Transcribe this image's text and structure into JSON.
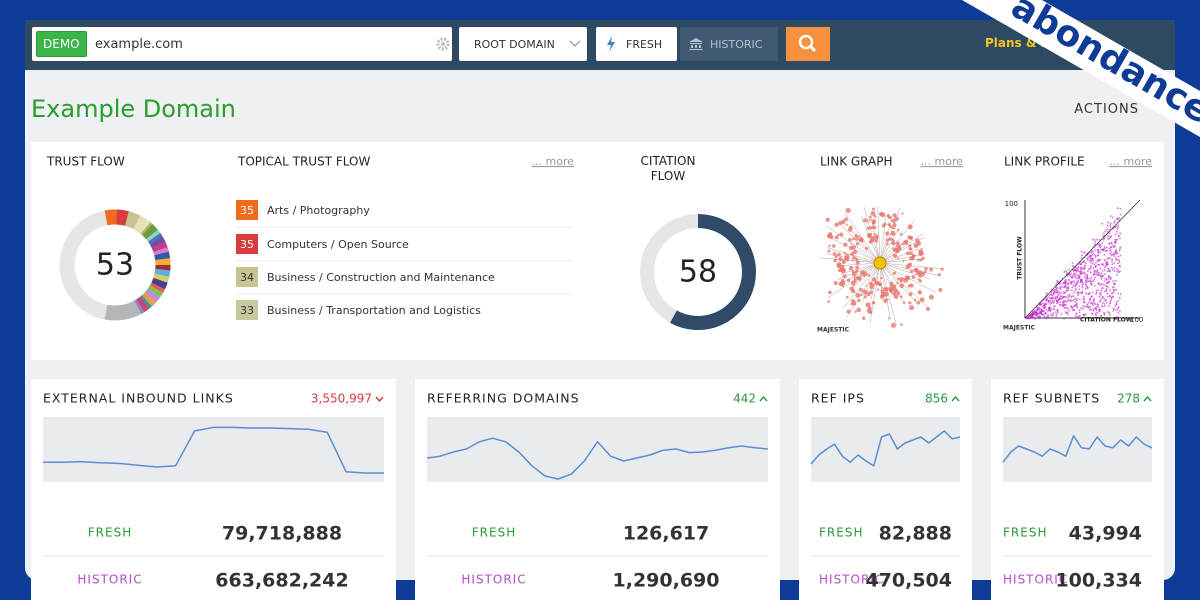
{
  "brand": "abondance",
  "search": {
    "badge": "DEMO",
    "query": "example.com",
    "scope": "ROOT DOMAIN",
    "fresh": "FRESH",
    "historic": "HISTORIC",
    "plans": "Plans & Pricing"
  },
  "domain": {
    "title": "Example Domain",
    "actions": "ACTIONS"
  },
  "trust_flow": {
    "title": "TRUST FLOW",
    "value": 53
  },
  "topical_trust_flow": {
    "title": "TOPICAL TRUST FLOW",
    "more": "... more",
    "topics": [
      {
        "score": 35,
        "label": "Arts / Photography",
        "color": "#f26b1d"
      },
      {
        "score": 35,
        "label": "Computers / Open Source",
        "color": "#d93c3c"
      },
      {
        "score": 34,
        "label": "Business / Construction and Maintenance",
        "color": "#c6c490"
      },
      {
        "score": 33,
        "label": "Business / Transportation and Logistics",
        "color": "#c9c89d"
      }
    ]
  },
  "citation_flow": {
    "title": "CITATION FLOW",
    "value": 58
  },
  "link_graph": {
    "title": "LINK GRAPH",
    "more": "... more",
    "logo": "MAJESTIC"
  },
  "link_profile": {
    "title": "LINK PROFILE",
    "more": "... more",
    "y_label": "TRUST FLOW",
    "x_label": "CITATION FLOW",
    "y_max": "100",
    "x_max": "100",
    "logo": "MAJESTIC"
  },
  "metrics": [
    {
      "title": "EXTERNAL INBOUND LINKS",
      "change": "3,550,997",
      "trend": "down",
      "fresh_label": "FRESH",
      "fresh_value": "79,718,888",
      "historic_label": "HISTORIC",
      "historic_value": "663,682,242"
    },
    {
      "title": "REFERRING DOMAINS",
      "change": "442",
      "trend": "up",
      "fresh_label": "FRESH",
      "fresh_value": "126,617",
      "historic_label": "HISTORIC",
      "historic_value": "1,290,690"
    },
    {
      "title": "REF IPS",
      "change": "856",
      "trend": "up",
      "fresh_label": "FRESH",
      "fresh_value": "82,888",
      "historic_label": "HISTORIC",
      "historic_value": "470,504"
    },
    {
      "title": "REF SUBNETS",
      "change": "278",
      "trend": "up",
      "fresh_label": "FRESH",
      "fresh_value": "43,994",
      "historic_label": "HISTORIC",
      "historic_value": "100,334"
    }
  ]
}
